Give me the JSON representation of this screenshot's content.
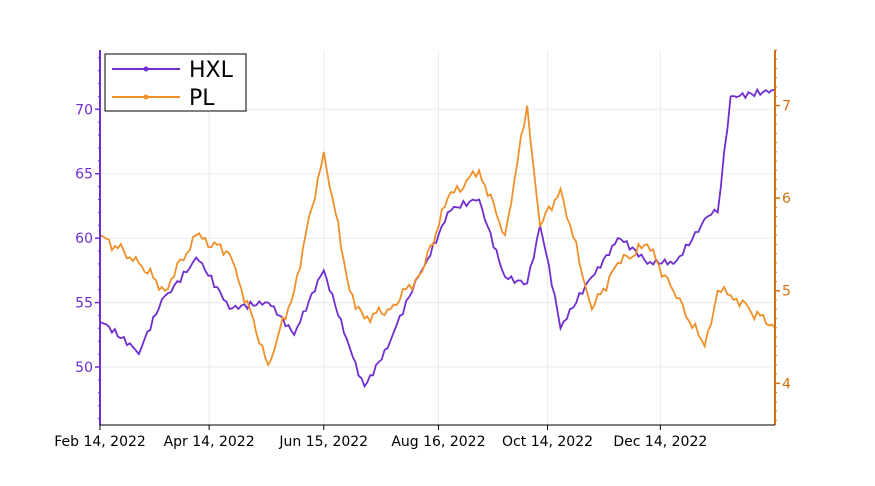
{
  "chart_data": {
    "type": "line",
    "x_tick_labels": [
      "Feb 14, 2022",
      "Apr 14, 2022",
      "Jun 15, 2022",
      "Aug 16, 2022",
      "Oct 14, 2022",
      "Dec 14, 2022"
    ],
    "x_ticks": [
      "2022-02-14",
      "2022-04-14",
      "2022-06-15",
      "2022-08-16",
      "2022-10-14",
      "2022-12-14"
    ],
    "x_range": [
      "2022-02-14",
      "2023-02-14"
    ],
    "y_left": {
      "range": [
        45.5,
        74.6
      ],
      "ticks": [
        50,
        55,
        60,
        65,
        70
      ],
      "color": "#6f2ed0"
    },
    "y_right": {
      "range": [
        3.55,
        7.6
      ],
      "ticks": [
        4,
        5,
        6,
        7
      ],
      "color": "#d4700f"
    },
    "grid": true,
    "legend": "top-left",
    "series": [
      {
        "name": "HXL",
        "axis": "left",
        "color": "#6f2ed0",
        "dates": [
          "2022-02-14",
          "2022-03-07",
          "2022-03-21",
          "2022-04-07",
          "2022-04-25",
          "2022-05-16",
          "2022-05-30",
          "2022-06-15",
          "2022-06-29",
          "2022-07-07",
          "2022-07-21",
          "2022-08-07",
          "2022-08-21",
          "2022-09-07",
          "2022-09-21",
          "2022-10-03",
          "2022-10-10",
          "2022-10-21",
          "2022-11-07",
          "2022-11-21",
          "2022-12-07",
          "2022-12-21",
          "2023-01-07",
          "2023-01-14",
          "2023-01-21",
          "2023-02-14"
        ],
        "values": [
          53.5,
          51.0,
          55.5,
          58.5,
          54.5,
          55.0,
          52.5,
          57.5,
          51.5,
          48.5,
          52.0,
          57.5,
          62.0,
          63.0,
          57.0,
          56.5,
          61.0,
          53.0,
          57.0,
          60.0,
          58.0,
          58.0,
          61.5,
          62.0,
          71.0,
          71.5
        ]
      },
      {
        "name": "PL",
        "axis": "right",
        "color": "#f0902a",
        "dates": [
          "2022-02-14",
          "2022-03-07",
          "2022-03-21",
          "2022-04-07",
          "2022-04-25",
          "2022-05-16",
          "2022-05-30",
          "2022-06-15",
          "2022-06-29",
          "2022-07-07",
          "2022-07-21",
          "2022-08-07",
          "2022-08-21",
          "2022-09-07",
          "2022-09-21",
          "2022-10-03",
          "2022-10-10",
          "2022-10-21",
          "2022-11-07",
          "2022-11-21",
          "2022-12-07",
          "2022-12-21",
          "2023-01-07",
          "2023-01-14",
          "2023-01-21",
          "2023-02-14"
        ],
        "values": [
          5.6,
          5.3,
          5.0,
          5.6,
          5.4,
          4.2,
          5.0,
          6.5,
          5.0,
          4.7,
          4.8,
          5.2,
          6.0,
          6.3,
          5.6,
          7.0,
          5.7,
          6.1,
          4.8,
          5.3,
          5.5,
          5.0,
          4.4,
          5.0,
          4.95,
          4.6
        ]
      }
    ]
  }
}
